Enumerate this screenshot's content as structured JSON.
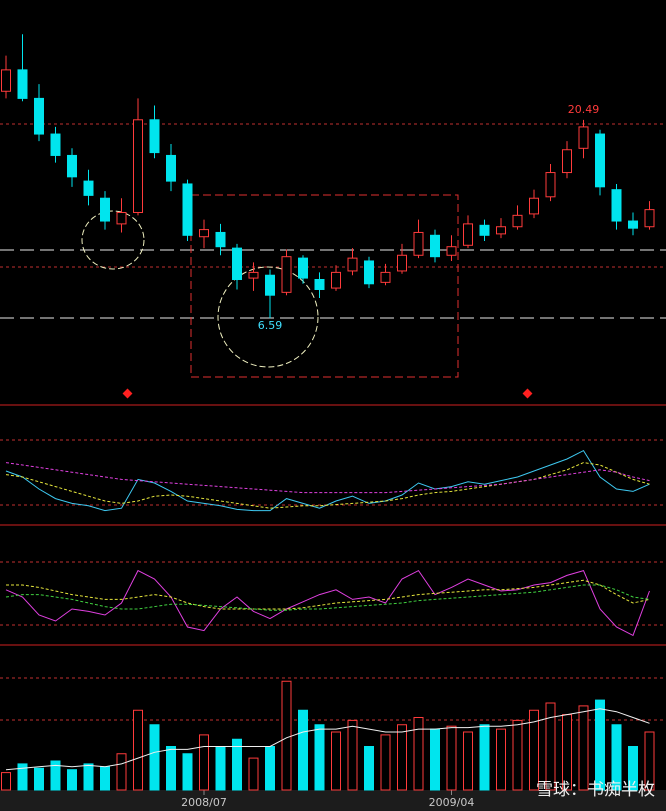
{
  "chart_data": [
    {
      "type": "candlestick",
      "ylim": [
        0.5,
        28.9
      ],
      "up_color": "#ff3b3b",
      "down_color": "#00e5ee",
      "categories": [
        null,
        null,
        null,
        null,
        null,
        null,
        null,
        null,
        null,
        null,
        null,
        null,
        "2008/07",
        null,
        null,
        null,
        null,
        null,
        null,
        null,
        null,
        null,
        null,
        null,
        null,
        null,
        null,
        "2009/04",
        null,
        null,
        null,
        null,
        null,
        null,
        null,
        null,
        null,
        null,
        null,
        null
      ],
      "open": [
        22.5,
        24,
        22,
        19.5,
        18,
        16.2,
        15,
        13.2,
        14,
        20.5,
        18,
        16,
        12.3,
        12.6,
        11.5,
        9.4,
        9.6,
        8.4,
        10.8,
        9.3,
        8.7,
        9.9,
        10.6,
        9.1,
        9.9,
        11,
        12.4,
        11,
        11.7,
        13.1,
        12.5,
        13,
        13.9,
        15.1,
        16.8,
        18.5,
        19.5,
        15.6,
        13.4,
        13
      ],
      "high": [
        25,
        26.5,
        23,
        20,
        18.5,
        17,
        15.5,
        15,
        22,
        21.5,
        18.8,
        16.3,
        13.5,
        13.2,
        11.8,
        10.5,
        10,
        11.4,
        11,
        9.8,
        10.3,
        11.5,
        10.9,
        10.4,
        11.8,
        13.5,
        12.8,
        12.4,
        13.8,
        13.5,
        13.6,
        14.5,
        15.6,
        17.4,
        19,
        20.49,
        19.8,
        16,
        14,
        14.8
      ],
      "low": [
        22,
        21.8,
        19,
        17.5,
        15.8,
        14.5,
        12.8,
        12.6,
        13.8,
        17.8,
        15.5,
        12,
        11.5,
        11,
        8.6,
        8.5,
        6.59,
        8.2,
        9,
        8,
        8.5,
        9.6,
        8.7,
        8.9,
        9.7,
        10.8,
        10.5,
        10.6,
        11.5,
        12,
        12.2,
        12.8,
        13.6,
        14.8,
        16.4,
        17.8,
        15.2,
        12.8,
        12.4,
        12.8
      ],
      "close": [
        24,
        22,
        19.5,
        18,
        16.5,
        15.2,
        13.4,
        14,
        20.5,
        18.2,
        16.2,
        12.4,
        12.8,
        11.6,
        9.3,
        9.8,
        8.2,
        10.9,
        9.4,
        8.6,
        9.8,
        10.8,
        9,
        9.8,
        11,
        12.6,
        10.9,
        11.6,
        13.2,
        12.4,
        13,
        13.8,
        15,
        16.8,
        18.4,
        20,
        15.8,
        13.4,
        12.9,
        14.2
      ],
      "annotations": [
        20.49,
        6.59
      ],
      "annotation_colors": [
        "#ff3b3b",
        "#40e0ff"
      ]
    },
    {
      "type": "line",
      "ylim": [
        0,
        100
      ],
      "series": [
        {
          "color": "#3ec8f0",
          "dash": false,
          "values": [
            45,
            40,
            30,
            22,
            18,
            16,
            12,
            14,
            38,
            35,
            28,
            20,
            18,
            16,
            13,
            12,
            12,
            22,
            18,
            14,
            20,
            24,
            18,
            20,
            25,
            35,
            30,
            32,
            36,
            34,
            37,
            40,
            45,
            50,
            55,
            62,
            40,
            30,
            28,
            34
          ]
        },
        {
          "color": "#e6e63c",
          "dash": true,
          "values": [
            42,
            40,
            36,
            32,
            28,
            24,
            20,
            18,
            20,
            24,
            25,
            24,
            22,
            20,
            18,
            16,
            14,
            15,
            16,
            16,
            17,
            18,
            19,
            20,
            22,
            25,
            27,
            28,
            30,
            32,
            34,
            36,
            38,
            42,
            46,
            52,
            50,
            44,
            38,
            34
          ]
        },
        {
          "color": "#e040e0",
          "dash": true,
          "values": [
            52,
            50,
            48,
            46,
            44,
            42,
            40,
            38,
            37,
            36,
            35,
            34,
            33,
            32,
            31,
            30,
            29,
            28,
            27,
            27,
            27,
            27,
            27,
            27,
            28,
            29,
            30,
            31,
            32,
            33,
            34,
            36,
            38,
            40,
            42,
            44,
            46,
            44,
            40,
            37
          ]
        }
      ]
    },
    {
      "type": "line",
      "ylim": [
        0,
        100
      ],
      "series": [
        {
          "color": "#e040e0",
          "dash": false,
          "values": [
            46,
            40,
            25,
            20,
            30,
            28,
            25,
            35,
            62,
            55,
            40,
            15,
            12,
            30,
            40,
            28,
            22,
            30,
            36,
            42,
            46,
            38,
            40,
            35,
            55,
            62,
            42,
            48,
            55,
            50,
            45,
            46,
            50,
            52,
            58,
            62,
            30,
            15,
            8,
            45
          ]
        },
        {
          "color": "#e6e63c",
          "dash": true,
          "values": [
            50,
            50,
            48,
            45,
            42,
            40,
            38,
            38,
            40,
            42,
            40,
            35,
            32,
            30,
            30,
            30,
            30,
            30,
            31,
            33,
            35,
            36,
            37,
            38,
            40,
            42,
            43,
            44,
            45,
            46,
            46,
            47,
            48,
            50,
            52,
            54,
            50,
            42,
            35,
            38
          ]
        },
        {
          "color": "#40d040",
          "dash": true,
          "values": [
            40,
            42,
            42,
            40,
            38,
            35,
            32,
            30,
            30,
            32,
            34,
            34,
            33,
            32,
            31,
            30,
            29,
            29,
            30,
            30,
            31,
            32,
            33,
            34,
            35,
            37,
            38,
            39,
            40,
            41,
            42,
            43,
            44,
            46,
            48,
            50,
            50,
            46,
            40,
            38
          ]
        }
      ]
    },
    {
      "type": "bar",
      "ylim": [
        0,
        100
      ],
      "values": [
        12,
        18,
        15,
        20,
        14,
        18,
        16,
        25,
        55,
        45,
        30,
        25,
        38,
        30,
        35,
        22,
        30,
        75,
        55,
        45,
        40,
        48,
        30,
        38,
        45,
        50,
        42,
        44,
        40,
        45,
        42,
        48,
        55,
        60,
        52,
        58,
        62,
        45,
        30,
        40
      ],
      "series": [
        {
          "color": "#f0f0f0",
          "dash": false,
          "values": [
            14,
            15,
            16,
            17,
            16,
            17,
            16,
            18,
            22,
            26,
            28,
            28,
            30,
            30,
            30,
            30,
            30,
            36,
            40,
            42,
            42,
            44,
            42,
            40,
            40,
            42,
            42,
            43,
            43,
            44,
            44,
            45,
            47,
            50,
            52,
            54,
            56,
            54,
            50,
            46
          ]
        }
      ]
    }
  ],
  "watermark": "雪球：书痴半枚"
}
